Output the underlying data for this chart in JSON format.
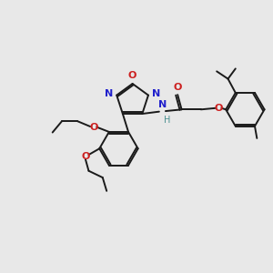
{
  "bg_color": "#e8e8e8",
  "bond_color": "#1a1a1a",
  "N_color": "#2020cc",
  "O_color": "#cc2020",
  "NH_color": "#4a9090",
  "figsize": [
    3.0,
    3.0
  ],
  "dpi": 100,
  "lw": 1.4,
  "fs": 8.0,
  "xlim": [
    0,
    10
  ],
  "ylim": [
    0,
    10
  ]
}
